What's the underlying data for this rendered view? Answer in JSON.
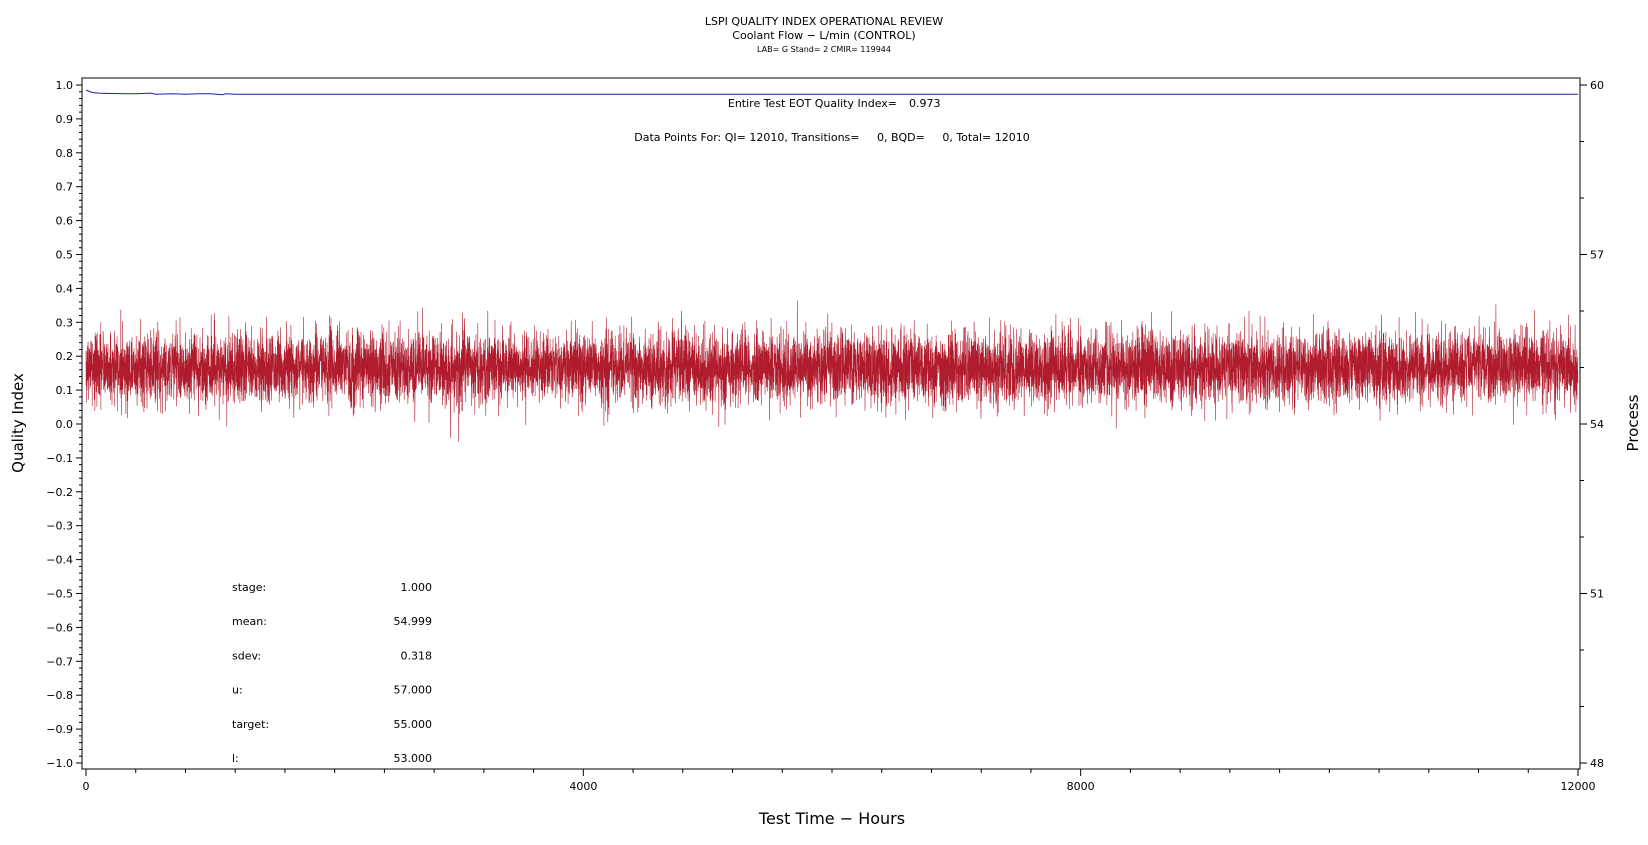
{
  "chart_data": {
    "type": "line",
    "title": "LSPI QUALITY INDEX OPERATIONAL REVIEW",
    "subtitle": "Coolant Flow − L/min (CONTROL)",
    "subtitle2": "LAB= G Stand= 2 CMIR= 119944",
    "xlabel": "Test Time − Hours",
    "ylabel": "Quality Index",
    "y2label": "Process",
    "xlim": [
      0,
      12000
    ],
    "ylim": [
      -1.0,
      1.0
    ],
    "y2lim": [
      48,
      60
    ],
    "x_ticks": [
      0,
      4000,
      8000,
      12000
    ],
    "y_ticks": [
      "1.0",
      "0.9",
      "0.8",
      "0.7",
      "0.6",
      "0.5",
      "0.4",
      "0.3",
      "0.2",
      "0.1",
      "0.0",
      "−0.1",
      "−0.2",
      "−0.3",
      "−0.4",
      "−0.5",
      "−0.6",
      "−0.7",
      "−0.8",
      "−0.9",
      "−1.0"
    ],
    "y2_ticks": [
      60,
      57,
      54,
      51,
      48
    ],
    "grid": false,
    "series": [
      {
        "role": "quality-index",
        "color": "#1f1fa8",
        "x": [
          0,
          50,
          100,
          200,
          400,
          520,
          560,
          700,
          800,
          900,
          1000,
          1100,
          1120,
          1200,
          1500,
          3000,
          6000,
          9000,
          12000
        ],
        "y": [
          0.985,
          0.978,
          0.976,
          0.975,
          0.974,
          0.976,
          0.973,
          0.974,
          0.973,
          0.974,
          0.974,
          0.971,
          0.974,
          0.973,
          0.973,
          0.973,
          0.973,
          0.973,
          0.973
        ]
      },
      {
        "role": "process",
        "color": "#b01c2e",
        "mean": 54.999,
        "sdev": 0.318,
        "n_points": 12010
      }
    ],
    "annotations": {
      "eot_label": "Entire Test EOT Quality Index=",
      "eot_value": "0.973",
      "points_text": "Data Points For: QI= 12010, Transitions=     0, BQD=     0, Total= 12010"
    },
    "stats": [
      {
        "label": "stage:",
        "value": "1.000"
      },
      {
        "label": "mean:",
        "value": "54.999"
      },
      {
        "label": "sdev:",
        "value": "0.318"
      },
      {
        "label": "u:",
        "value": "57.000"
      },
      {
        "label": "target:",
        "value": "55.000"
      },
      {
        "label": "l:",
        "value": "53.000"
      }
    ]
  }
}
